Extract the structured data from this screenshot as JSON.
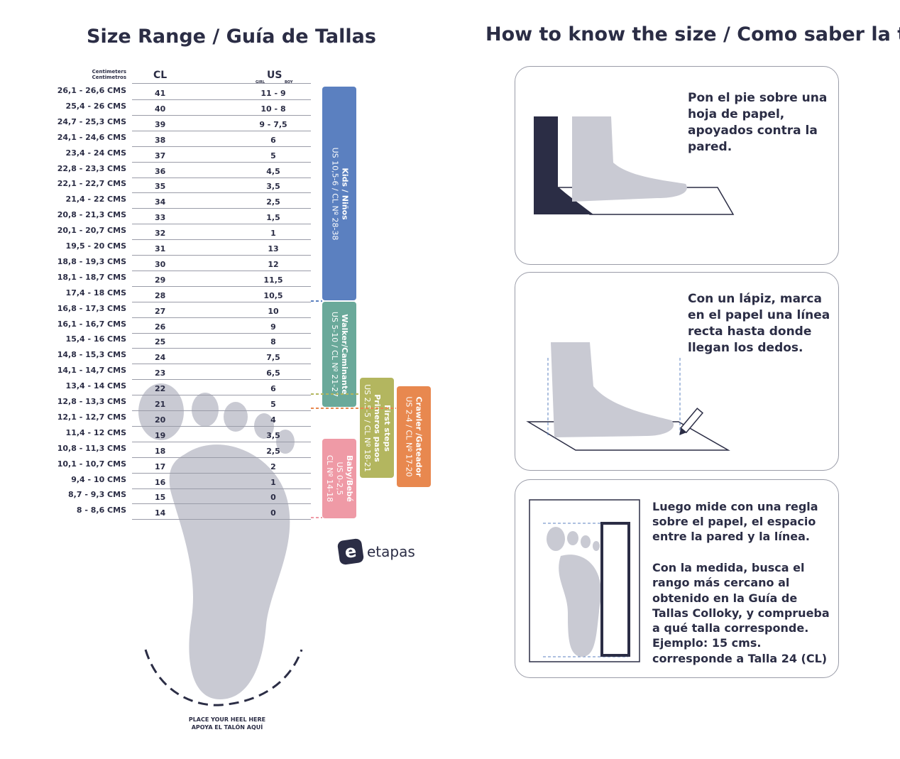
{
  "left_title": "Size Range / Guía de Tallas",
  "right_title": "How to know the size / Como saber la talla",
  "table": {
    "cm_header": [
      "Centimeters",
      "Centimetros"
    ],
    "cl_header": "CL",
    "us_header": "US",
    "girl_label": "GIRL",
    "boy_label": "BOY",
    "rows": [
      {
        "cm": "26,1 - 26,6 CMS",
        "cl": "41",
        "us": "11  -  9"
      },
      {
        "cm": "25,4 - 26 CMS",
        "cl": "40",
        "us": "10  -  8"
      },
      {
        "cm": "24,7 - 25,3 CMS",
        "cl": "39",
        "us": "9  -  7,5"
      },
      {
        "cm": "24,1 - 24,6 CMS",
        "cl": "38",
        "us": "6"
      },
      {
        "cm": "23,4 - 24 CMS",
        "cl": "37",
        "us": "5"
      },
      {
        "cm": "22,8 - 23,3 CMS",
        "cl": "36",
        "us": "4,5"
      },
      {
        "cm": "22,1 - 22,7 CMS",
        "cl": "35",
        "us": "3,5"
      },
      {
        "cm": "21,4 - 22 CMS",
        "cl": "34",
        "us": "2,5"
      },
      {
        "cm": "20,8 - 21,3 CMS",
        "cl": "33",
        "us": "1,5"
      },
      {
        "cm": "20,1 - 20,7 CMS",
        "cl": "32",
        "us": "1"
      },
      {
        "cm": "19,5 - 20 CMS",
        "cl": "31",
        "us": "13"
      },
      {
        "cm": "18,8 - 19,3 CMS",
        "cl": "30",
        "us": "12"
      },
      {
        "cm": "18,1 - 18,7 CMS",
        "cl": "29",
        "us": "11,5"
      },
      {
        "cm": "17,4 - 18 CMS",
        "cl": "28",
        "us": "10,5"
      },
      {
        "cm": "16,8 - 17,3 CMS",
        "cl": "27",
        "us": "10"
      },
      {
        "cm": "16,1 - 16,7 CMS",
        "cl": "26",
        "us": "9"
      },
      {
        "cm": "15,4 - 16 CMS",
        "cl": "25",
        "us": "8"
      },
      {
        "cm": "14,8 - 15,3 CMS",
        "cl": "24",
        "us": "7,5"
      },
      {
        "cm": "14,1 - 14,7 CMS",
        "cl": "23",
        "us": "6,5"
      },
      {
        "cm": "13,4 - 14 CMS",
        "cl": "22",
        "us": "6"
      },
      {
        "cm": "12,8 - 13,3 CMS",
        "cl": "21",
        "us": "5"
      },
      {
        "cm": "12,1 - 12,7 CMS",
        "cl": "20",
        "us": "4"
      },
      {
        "cm": "11,4 - 12 CMS",
        "cl": "19",
        "us": "3,5"
      },
      {
        "cm": "10,8 - 11,3 CMS",
        "cl": "18",
        "us": "2,5"
      },
      {
        "cm": "10,1 - 10,7 CMS",
        "cl": "17",
        "us": "2"
      },
      {
        "cm": "9,4 - 10 CMS",
        "cl": "16",
        "us": "1"
      },
      {
        "cm": "8,7 - 9,3 CMS",
        "cl": "15",
        "us": "0"
      },
      {
        "cm": "8 - 8,6 CMS",
        "cl": "14",
        "us": "0"
      }
    ]
  },
  "stages": [
    {
      "name": "Kids / Niños",
      "range": "US 10,5-6 / CL Nº 28-38",
      "color": "#5b80c0"
    },
    {
      "name": "Walker/Caminante",
      "range": "US 5-10 / CL Nº 21-27",
      "color": "#6aa99a"
    },
    {
      "name": "Baby/Bebé",
      "range": "US 0-2,5",
      "range2": "CL Nº 14-18",
      "color": "#ef9aa6"
    },
    {
      "name": "First steps",
      "name2": "Primeros pasos",
      "range": "US 2,5-5 / CL Nº 18-21",
      "color": "#b3b65f"
    },
    {
      "name": "Crawler /Gateador",
      "range": "US 2-4 / CL Nº 17-20",
      "color": "#e8884f"
    }
  ],
  "heel_text": [
    "PLACE YOUR HEEL HERE",
    "APOYA EL TALÓN AQUÍ"
  ],
  "logo_text": "etapas",
  "steps": [
    {
      "text": "Pon el pie sobre una hoja de papel, apoyados contra la pared."
    },
    {
      "text": "Con un lápiz, marca en el papel una línea recta hasta donde llegan los dedos."
    },
    {
      "text": "Luego mide con una regla sobre el papel, el espacio entre la pared y la línea.",
      "text2": "Con la medida, busca el rango más cercano al obtenido en la Guía de Tallas Colloky, y comprueba a qué talla corresponde. Ejemplo:  15 cms. corresponde a Talla 24 (CL)"
    }
  ],
  "colors": {
    "text": "#2b2d45",
    "foot": "#c9cad3"
  }
}
